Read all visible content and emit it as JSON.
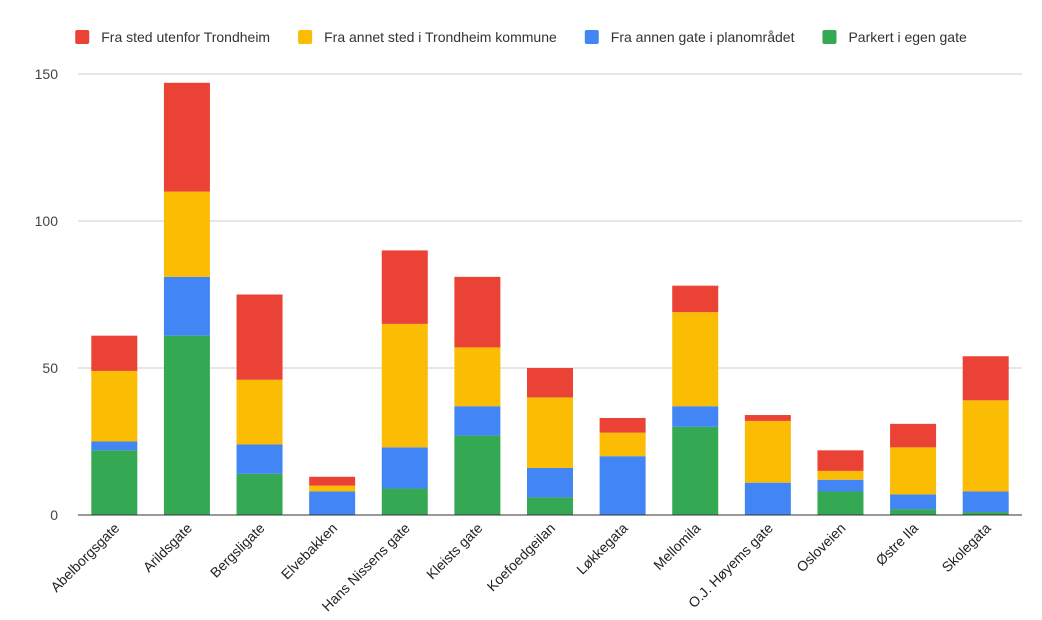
{
  "chart_data": {
    "type": "bar",
    "stacked": true,
    "title": "",
    "xlabel": "",
    "ylabel": "",
    "ylim": [
      0,
      150
    ],
    "yticks": [
      0,
      50,
      100,
      150
    ],
    "grid": true,
    "legend_position": "top",
    "categories": [
      "Abelborgsgate",
      "Arildsgate",
      "Bergsligate",
      "Elvebakken",
      "Hans Nissens gate",
      "Kleists gate",
      "Koefoedgeilan",
      "Løkkegata",
      "Mellomila",
      "O.J. Høyems gate",
      "Osloveien",
      "Østre Ila",
      "Skolegata"
    ],
    "series": [
      {
        "name": "Parkert i egen gate",
        "color": "#34a853",
        "values": [
          22,
          61,
          14,
          0,
          9,
          27,
          6,
          0,
          30,
          0,
          8,
          2,
          1
        ]
      },
      {
        "name": "Fra annen gate i planområdet",
        "color": "#4285f4",
        "values": [
          3,
          20,
          10,
          8,
          14,
          10,
          10,
          20,
          7,
          11,
          4,
          5,
          7
        ]
      },
      {
        "name": "Fra annet sted i Trondheim kommune",
        "color": "#fbbc04",
        "values": [
          24,
          29,
          22,
          2,
          42,
          20,
          24,
          8,
          32,
          21,
          3,
          16,
          31
        ]
      },
      {
        "name": "Fra sted utenfor Trondheim",
        "color": "#ea4335",
        "values": [
          12,
          37,
          29,
          3,
          25,
          24,
          10,
          5,
          9,
          2,
          7,
          8,
          15
        ]
      }
    ],
    "legend_order": [
      "Fra sted utenfor Trondheim",
      "Fra annet sted i Trondheim kommune",
      "Fra annen gate i planområdet",
      "Parkert i egen gate"
    ]
  }
}
